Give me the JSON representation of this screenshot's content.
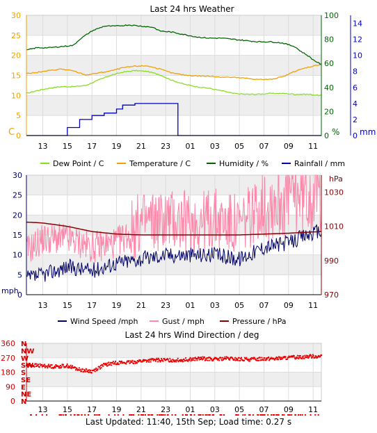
{
  "colors": {
    "temperature": "#f0a000",
    "dewpoint": "#88dd22",
    "humidity": "#006600",
    "rainfall": "#0000bb",
    "windspeed": "#000066",
    "gust": "#ff88aa",
    "pressure": "#880000",
    "direction": "#ee0000",
    "band": "#eeeeee",
    "tick_black": "#000000"
  },
  "footer": "Last Updated: 11:40, 15th Sep; Load time: 0.27 s",
  "chart_data": [
    {
      "type": "line",
      "title": "Last 24 hrs Weather",
      "x_ticks": [
        "13",
        "15",
        "17",
        "19",
        "21",
        "23",
        "01",
        "03",
        "05",
        "07",
        "09",
        "11"
      ],
      "x_range_hours": [
        11.67,
        35.67
      ],
      "y_left": {
        "label": "C",
        "ticks": [
          "0",
          "5",
          "10",
          "15",
          "20",
          "25",
          "30"
        ],
        "range": [
          0,
          30
        ]
      },
      "y_right_1": {
        "label": "%",
        "ticks": [
          "0",
          "20",
          "40",
          "60",
          "80",
          "100"
        ],
        "range": [
          0,
          100
        ]
      },
      "y_right_2": {
        "label": "mm",
        "ticks": [
          "0",
          "2",
          "4",
          "6",
          "8",
          "10",
          "12",
          "14"
        ],
        "range": [
          0,
          15
        ]
      },
      "legend": [
        "Dew Point / C",
        "Temperature / C",
        "Humidity / %",
        "Rainfall / mm"
      ],
      "legend_position": "bottom",
      "series": [
        {
          "name": "Dew Point / C",
          "axis": "left",
          "x": [
            11.67,
            12.5,
            13.5,
            14.5,
            15.5,
            16.5,
            17.5,
            18.5,
            19.5,
            20.5,
            21.5,
            22.5,
            23.5,
            24.5,
            25.5,
            26.5,
            27.5,
            28.5,
            29.5,
            30.5,
            31.5,
            32.5,
            33.5,
            34.5,
            35.67
          ],
          "y": [
            10.5,
            11.2,
            11.8,
            12.2,
            12.2,
            12.5,
            13.8,
            15.0,
            15.8,
            16.2,
            16.0,
            15.2,
            13.8,
            12.8,
            12.2,
            11.8,
            11.2,
            10.5,
            10.3,
            10.3,
            10.5,
            10.5,
            10.3,
            10.3,
            10.0
          ]
        },
        {
          "name": "Temperature / C",
          "axis": "left",
          "x": [
            11.67,
            12.5,
            13.5,
            14.5,
            15.5,
            16.5,
            17.5,
            18.5,
            19.5,
            20.5,
            21.5,
            22.5,
            23.5,
            24.5,
            25.5,
            26.5,
            27.5,
            28.5,
            29.5,
            30.5,
            31.5,
            32.5,
            33.5,
            34.5,
            35.67
          ],
          "y": [
            15.5,
            15.7,
            16.2,
            16.6,
            16.1,
            15.1,
            15.6,
            16.1,
            16.9,
            17.3,
            17.4,
            16.6,
            15.6,
            15.1,
            14.9,
            14.8,
            14.6,
            14.5,
            14.3,
            14.0,
            14.0,
            14.6,
            16.0,
            17.0,
            17.8
          ]
        },
        {
          "name": "Humidity / %",
          "axis": "right_1",
          "x": [
            11.67,
            12.5,
            13.5,
            14.5,
            15.5,
            16.0,
            17.0,
            18.0,
            19.0,
            20.0,
            21.0,
            22.0,
            22.5,
            23.5,
            24.5,
            25.5,
            26.5,
            27.5,
            28.5,
            29.5,
            30.5,
            31.5,
            32.5,
            33.5,
            34.0,
            34.5,
            35.0,
            35.67
          ],
          "y": [
            71,
            73,
            73,
            74,
            75,
            80,
            87,
            91,
            91,
            92,
            91,
            90,
            87,
            86,
            84,
            82,
            81,
            81,
            80,
            79,
            78,
            78,
            77,
            74,
            70,
            67,
            63,
            59
          ]
        },
        {
          "name": "Rainfall / mm",
          "axis": "right_2",
          "x": [
            11.67,
            14.0,
            15.0,
            16.0,
            17.0,
            18.0,
            19.0,
            19.5,
            20.5,
            22.0,
            23.0,
            24.0,
            24.0,
            35.67
          ],
          "y": [
            0,
            0,
            1.0,
            2.0,
            2.5,
            2.8,
            3.3,
            3.8,
            4.0,
            4.0,
            4.0,
            4.0,
            0,
            0
          ]
        }
      ]
    },
    {
      "type": "line",
      "title": "",
      "x_ticks": [
        "13",
        "15",
        "17",
        "19",
        "21",
        "23",
        "01",
        "03",
        "05",
        "07",
        "09",
        "11"
      ],
      "y_left": {
        "label": "mph",
        "ticks": [
          "0",
          "5",
          "10",
          "15",
          "20",
          "25",
          "30"
        ],
        "range": [
          0,
          30
        ]
      },
      "y_right": {
        "label": "hPa",
        "ticks": [
          "970",
          "990",
          "1010",
          "1030"
        ],
        "range": [
          970,
          1040
        ]
      },
      "legend": [
        "Wind Speed /mph",
        "Gust / mph",
        "Pressure / hPa"
      ],
      "legend_position": "bottom",
      "series": [
        {
          "name": "Wind Speed /mph",
          "axis": "left",
          "x": [
            11.67,
            13,
            15,
            17,
            19,
            21,
            23,
            25,
            27,
            29,
            31,
            33,
            34.5,
            35.67
          ],
          "y": [
            4,
            5,
            7,
            6,
            8,
            9,
            10,
            10,
            10,
            9,
            12,
            13,
            15,
            16
          ]
        },
        {
          "name": "Gust / mph",
          "axis": "left",
          "x": [
            11.67,
            13,
            15,
            17,
            19,
            21,
            23,
            25,
            27,
            29,
            31,
            33,
            34.5,
            35.67
          ],
          "y": [
            11,
            14,
            14,
            12,
            13,
            18,
            19,
            18,
            19,
            17,
            23,
            25,
            26,
            26
          ]
        },
        {
          "name": "Pressure / hPa",
          "axis": "right",
          "x": [
            11.67,
            13,
            15,
            17,
            19,
            21,
            23,
            25,
            27,
            29,
            31,
            33,
            35.67
          ],
          "y": [
            1012.5,
            1012,
            1010,
            1007,
            1005.5,
            1005,
            1005,
            1005,
            1005,
            1005,
            1005.5,
            1006,
            1007
          ]
        }
      ]
    },
    {
      "type": "scatter",
      "title": "Last 24 hrs Wind Direction / deg",
      "x_ticks": [
        "13",
        "15",
        "17",
        "19",
        "21",
        "23",
        "01",
        "03",
        "05",
        "07",
        "09",
        "11"
      ],
      "y_ticks": [
        "0",
        "90",
        "180",
        "270",
        "360"
      ],
      "y_range": [
        0,
        360
      ],
      "compass_labels": [
        "N",
        "NE",
        "E",
        "SE",
        "S",
        "SW",
        "W",
        "NW",
        "N"
      ],
      "series": [
        {
          "name": "",
          "x": [
            11.67,
            13,
            14,
            15,
            16,
            17,
            18,
            19,
            20,
            21,
            22,
            23,
            24,
            25,
            26,
            27,
            28,
            29,
            30,
            31,
            32,
            33,
            34,
            35,
            35.67
          ],
          "y": [
            225,
            220,
            215,
            220,
            195,
            185,
            225,
            240,
            240,
            250,
            255,
            255,
            255,
            260,
            265,
            260,
            265,
            260,
            260,
            265,
            265,
            270,
            275,
            280,
            278
          ]
        }
      ]
    }
  ]
}
